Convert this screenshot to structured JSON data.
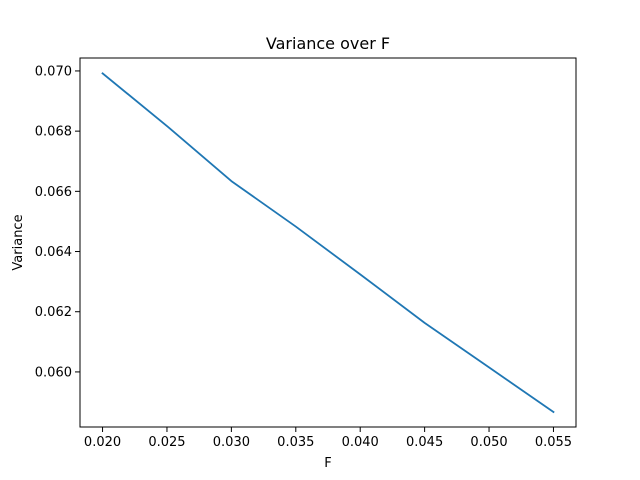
{
  "chart_data": {
    "type": "line",
    "title": "Variance over F",
    "xlabel": "F",
    "ylabel": "Variance",
    "xlim": [
      0.01825,
      0.05675
    ],
    "ylim": [
      0.05817,
      0.07043
    ],
    "x_ticks": [
      0.02,
      0.025,
      0.03,
      0.035,
      0.04,
      0.045,
      0.05,
      0.055
    ],
    "x_tick_labels": [
      "0.020",
      "0.025",
      "0.030",
      "0.035",
      "0.040",
      "0.045",
      "0.050",
      "0.055"
    ],
    "y_ticks": [
      0.06,
      0.062,
      0.064,
      0.066,
      0.068,
      0.07
    ],
    "y_tick_labels": [
      "0.060",
      "0.062",
      "0.064",
      "0.066",
      "0.068",
      "0.070"
    ],
    "grid": false,
    "series": [
      {
        "color": "#1f77b4",
        "x": [
          0.02,
          0.025,
          0.03,
          0.035,
          0.04,
          0.045,
          0.05,
          0.055
        ],
        "y": [
          0.06992,
          0.06817,
          0.06634,
          0.06483,
          0.06324,
          0.06163,
          0.06015,
          0.05867
        ]
      }
    ]
  }
}
